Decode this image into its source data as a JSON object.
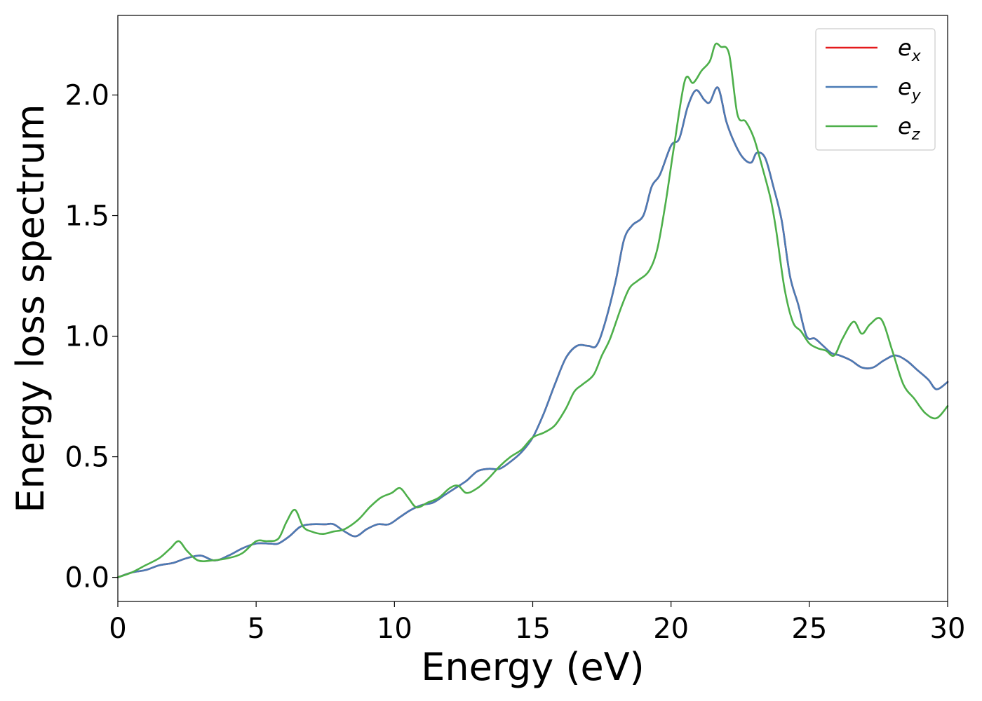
{
  "chart_data": {
    "type": "line",
    "title": "",
    "xlabel": "Energy (eV)",
    "ylabel": "Energy loss spectrum",
    "xlim": [
      0,
      30
    ],
    "ylim": [
      -0.1,
      2.33
    ],
    "xticks": [
      0,
      5,
      10,
      15,
      20,
      25,
      30
    ],
    "xtick_labels": [
      "0",
      "5",
      "10",
      "15",
      "20",
      "25",
      "30"
    ],
    "yticks": [
      0.0,
      0.5,
      1.0,
      1.5,
      2.0
    ],
    "ytick_labels": [
      "0.0",
      "0.5",
      "1.0",
      "1.5",
      "2.0"
    ],
    "grid": false,
    "legend_position": "top-right",
    "series": [
      {
        "name": "e_x",
        "legend_base": "e",
        "legend_sub": "x",
        "color": "#e41a1c",
        "x": [
          0,
          0.5,
          1.0,
          1.5,
          2.0,
          2.5,
          3.0,
          3.5,
          4.0,
          4.5,
          5.0,
          5.5,
          5.8,
          6.2,
          6.6,
          7.0,
          7.5,
          7.8,
          8.2,
          8.6,
          9.0,
          9.4,
          9.8,
          10.2,
          10.6,
          11.0,
          11.4,
          11.8,
          12.2,
          12.6,
          13.0,
          13.4,
          13.8,
          14.2,
          14.6,
          15.0,
          15.4,
          15.8,
          16.2,
          16.6,
          17.0,
          17.3,
          17.6,
          18.0,
          18.3,
          18.6,
          19.0,
          19.3,
          19.6,
          20.0,
          20.3,
          20.6,
          20.9,
          21.2,
          21.4,
          21.7,
          22.0,
          22.3,
          22.6,
          22.9,
          23.1,
          23.4,
          23.7,
          24.0,
          24.3,
          24.6,
          24.9,
          25.2,
          25.5,
          25.8,
          26.1,
          26.5,
          26.9,
          27.3,
          27.7,
          28.1,
          28.5,
          28.9,
          29.3,
          29.6,
          30.0
        ],
        "y": [
          0.0,
          0.02,
          0.03,
          0.05,
          0.06,
          0.08,
          0.09,
          0.07,
          0.09,
          0.12,
          0.14,
          0.14,
          0.14,
          0.17,
          0.21,
          0.22,
          0.22,
          0.22,
          0.19,
          0.17,
          0.2,
          0.22,
          0.22,
          0.25,
          0.28,
          0.3,
          0.31,
          0.34,
          0.37,
          0.4,
          0.44,
          0.45,
          0.45,
          0.48,
          0.52,
          0.58,
          0.68,
          0.8,
          0.91,
          0.96,
          0.96,
          0.96,
          1.05,
          1.23,
          1.4,
          1.46,
          1.5,
          1.62,
          1.67,
          1.79,
          1.82,
          1.95,
          2.02,
          1.98,
          1.97,
          2.03,
          1.89,
          1.8,
          1.74,
          1.72,
          1.76,
          1.74,
          1.62,
          1.48,
          1.25,
          1.13,
          1.0,
          0.99,
          0.96,
          0.93,
          0.92,
          0.9,
          0.87,
          0.87,
          0.9,
          0.92,
          0.9,
          0.86,
          0.82,
          0.78,
          0.81
        ]
      },
      {
        "name": "e_y",
        "legend_base": "e",
        "legend_sub": "y",
        "color": "#4a7bb5",
        "x": [
          0,
          0.5,
          1.0,
          1.5,
          2.0,
          2.5,
          3.0,
          3.5,
          4.0,
          4.5,
          5.0,
          5.5,
          5.8,
          6.2,
          6.6,
          7.0,
          7.5,
          7.8,
          8.2,
          8.6,
          9.0,
          9.4,
          9.8,
          10.2,
          10.6,
          11.0,
          11.4,
          11.8,
          12.2,
          12.6,
          13.0,
          13.4,
          13.8,
          14.2,
          14.6,
          15.0,
          15.4,
          15.8,
          16.2,
          16.6,
          17.0,
          17.3,
          17.6,
          18.0,
          18.3,
          18.6,
          19.0,
          19.3,
          19.6,
          20.0,
          20.3,
          20.6,
          20.9,
          21.2,
          21.4,
          21.7,
          22.0,
          22.3,
          22.6,
          22.9,
          23.1,
          23.4,
          23.7,
          24.0,
          24.3,
          24.6,
          24.9,
          25.2,
          25.5,
          25.8,
          26.1,
          26.5,
          26.9,
          27.3,
          27.7,
          28.1,
          28.5,
          28.9,
          29.3,
          29.6,
          30.0
        ],
        "y": [
          0.0,
          0.02,
          0.03,
          0.05,
          0.06,
          0.08,
          0.09,
          0.07,
          0.09,
          0.12,
          0.14,
          0.14,
          0.14,
          0.17,
          0.21,
          0.22,
          0.22,
          0.22,
          0.19,
          0.17,
          0.2,
          0.22,
          0.22,
          0.25,
          0.28,
          0.3,
          0.31,
          0.34,
          0.37,
          0.4,
          0.44,
          0.45,
          0.45,
          0.48,
          0.52,
          0.58,
          0.68,
          0.8,
          0.91,
          0.96,
          0.96,
          0.96,
          1.05,
          1.23,
          1.4,
          1.46,
          1.5,
          1.62,
          1.67,
          1.79,
          1.82,
          1.95,
          2.02,
          1.98,
          1.97,
          2.03,
          1.89,
          1.8,
          1.74,
          1.72,
          1.76,
          1.74,
          1.62,
          1.48,
          1.25,
          1.13,
          1.0,
          0.99,
          0.96,
          0.93,
          0.92,
          0.9,
          0.87,
          0.87,
          0.9,
          0.92,
          0.9,
          0.86,
          0.82,
          0.78,
          0.81
        ]
      },
      {
        "name": "e_z",
        "legend_base": "e",
        "legend_sub": "z",
        "color": "#4daf4a",
        "x": [
          0,
          0.5,
          1.0,
          1.5,
          1.9,
          2.2,
          2.5,
          2.9,
          3.4,
          4.0,
          4.5,
          5.0,
          5.4,
          5.8,
          6.1,
          6.4,
          6.7,
          7.0,
          7.4,
          7.8,
          8.2,
          8.7,
          9.1,
          9.5,
          9.9,
          10.2,
          10.5,
          10.8,
          11.2,
          11.6,
          12.0,
          12.3,
          12.6,
          13.0,
          13.4,
          13.8,
          14.2,
          14.6,
          15.0,
          15.4,
          15.8,
          16.2,
          16.5,
          16.8,
          17.2,
          17.5,
          17.8,
          18.2,
          18.5,
          18.8,
          19.2,
          19.5,
          19.8,
          20.1,
          20.5,
          20.8,
          21.1,
          21.4,
          21.6,
          21.8,
          22.1,
          22.4,
          22.7,
          23.0,
          23.3,
          23.6,
          23.8,
          24.1,
          24.4,
          24.7,
          25.0,
          25.3,
          25.6,
          25.9,
          26.2,
          26.6,
          26.9,
          27.2,
          27.6,
          28.0,
          28.4,
          28.8,
          29.2,
          29.6,
          30.0
        ],
        "y": [
          0.0,
          0.02,
          0.05,
          0.08,
          0.12,
          0.15,
          0.11,
          0.07,
          0.07,
          0.08,
          0.1,
          0.15,
          0.15,
          0.16,
          0.23,
          0.28,
          0.21,
          0.19,
          0.18,
          0.19,
          0.2,
          0.24,
          0.29,
          0.33,
          0.35,
          0.37,
          0.33,
          0.29,
          0.31,
          0.33,
          0.37,
          0.38,
          0.35,
          0.37,
          0.41,
          0.46,
          0.5,
          0.53,
          0.58,
          0.6,
          0.63,
          0.7,
          0.77,
          0.8,
          0.84,
          0.92,
          0.99,
          1.12,
          1.2,
          1.23,
          1.27,
          1.36,
          1.55,
          1.78,
          2.06,
          2.05,
          2.1,
          2.14,
          2.21,
          2.2,
          2.17,
          1.92,
          1.89,
          1.82,
          1.7,
          1.57,
          1.44,
          1.2,
          1.06,
          1.02,
          0.97,
          0.95,
          0.94,
          0.92,
          0.99,
          1.06,
          1.01,
          1.05,
          1.07,
          0.94,
          0.8,
          0.74,
          0.68,
          0.66,
          0.71
        ]
      }
    ]
  }
}
